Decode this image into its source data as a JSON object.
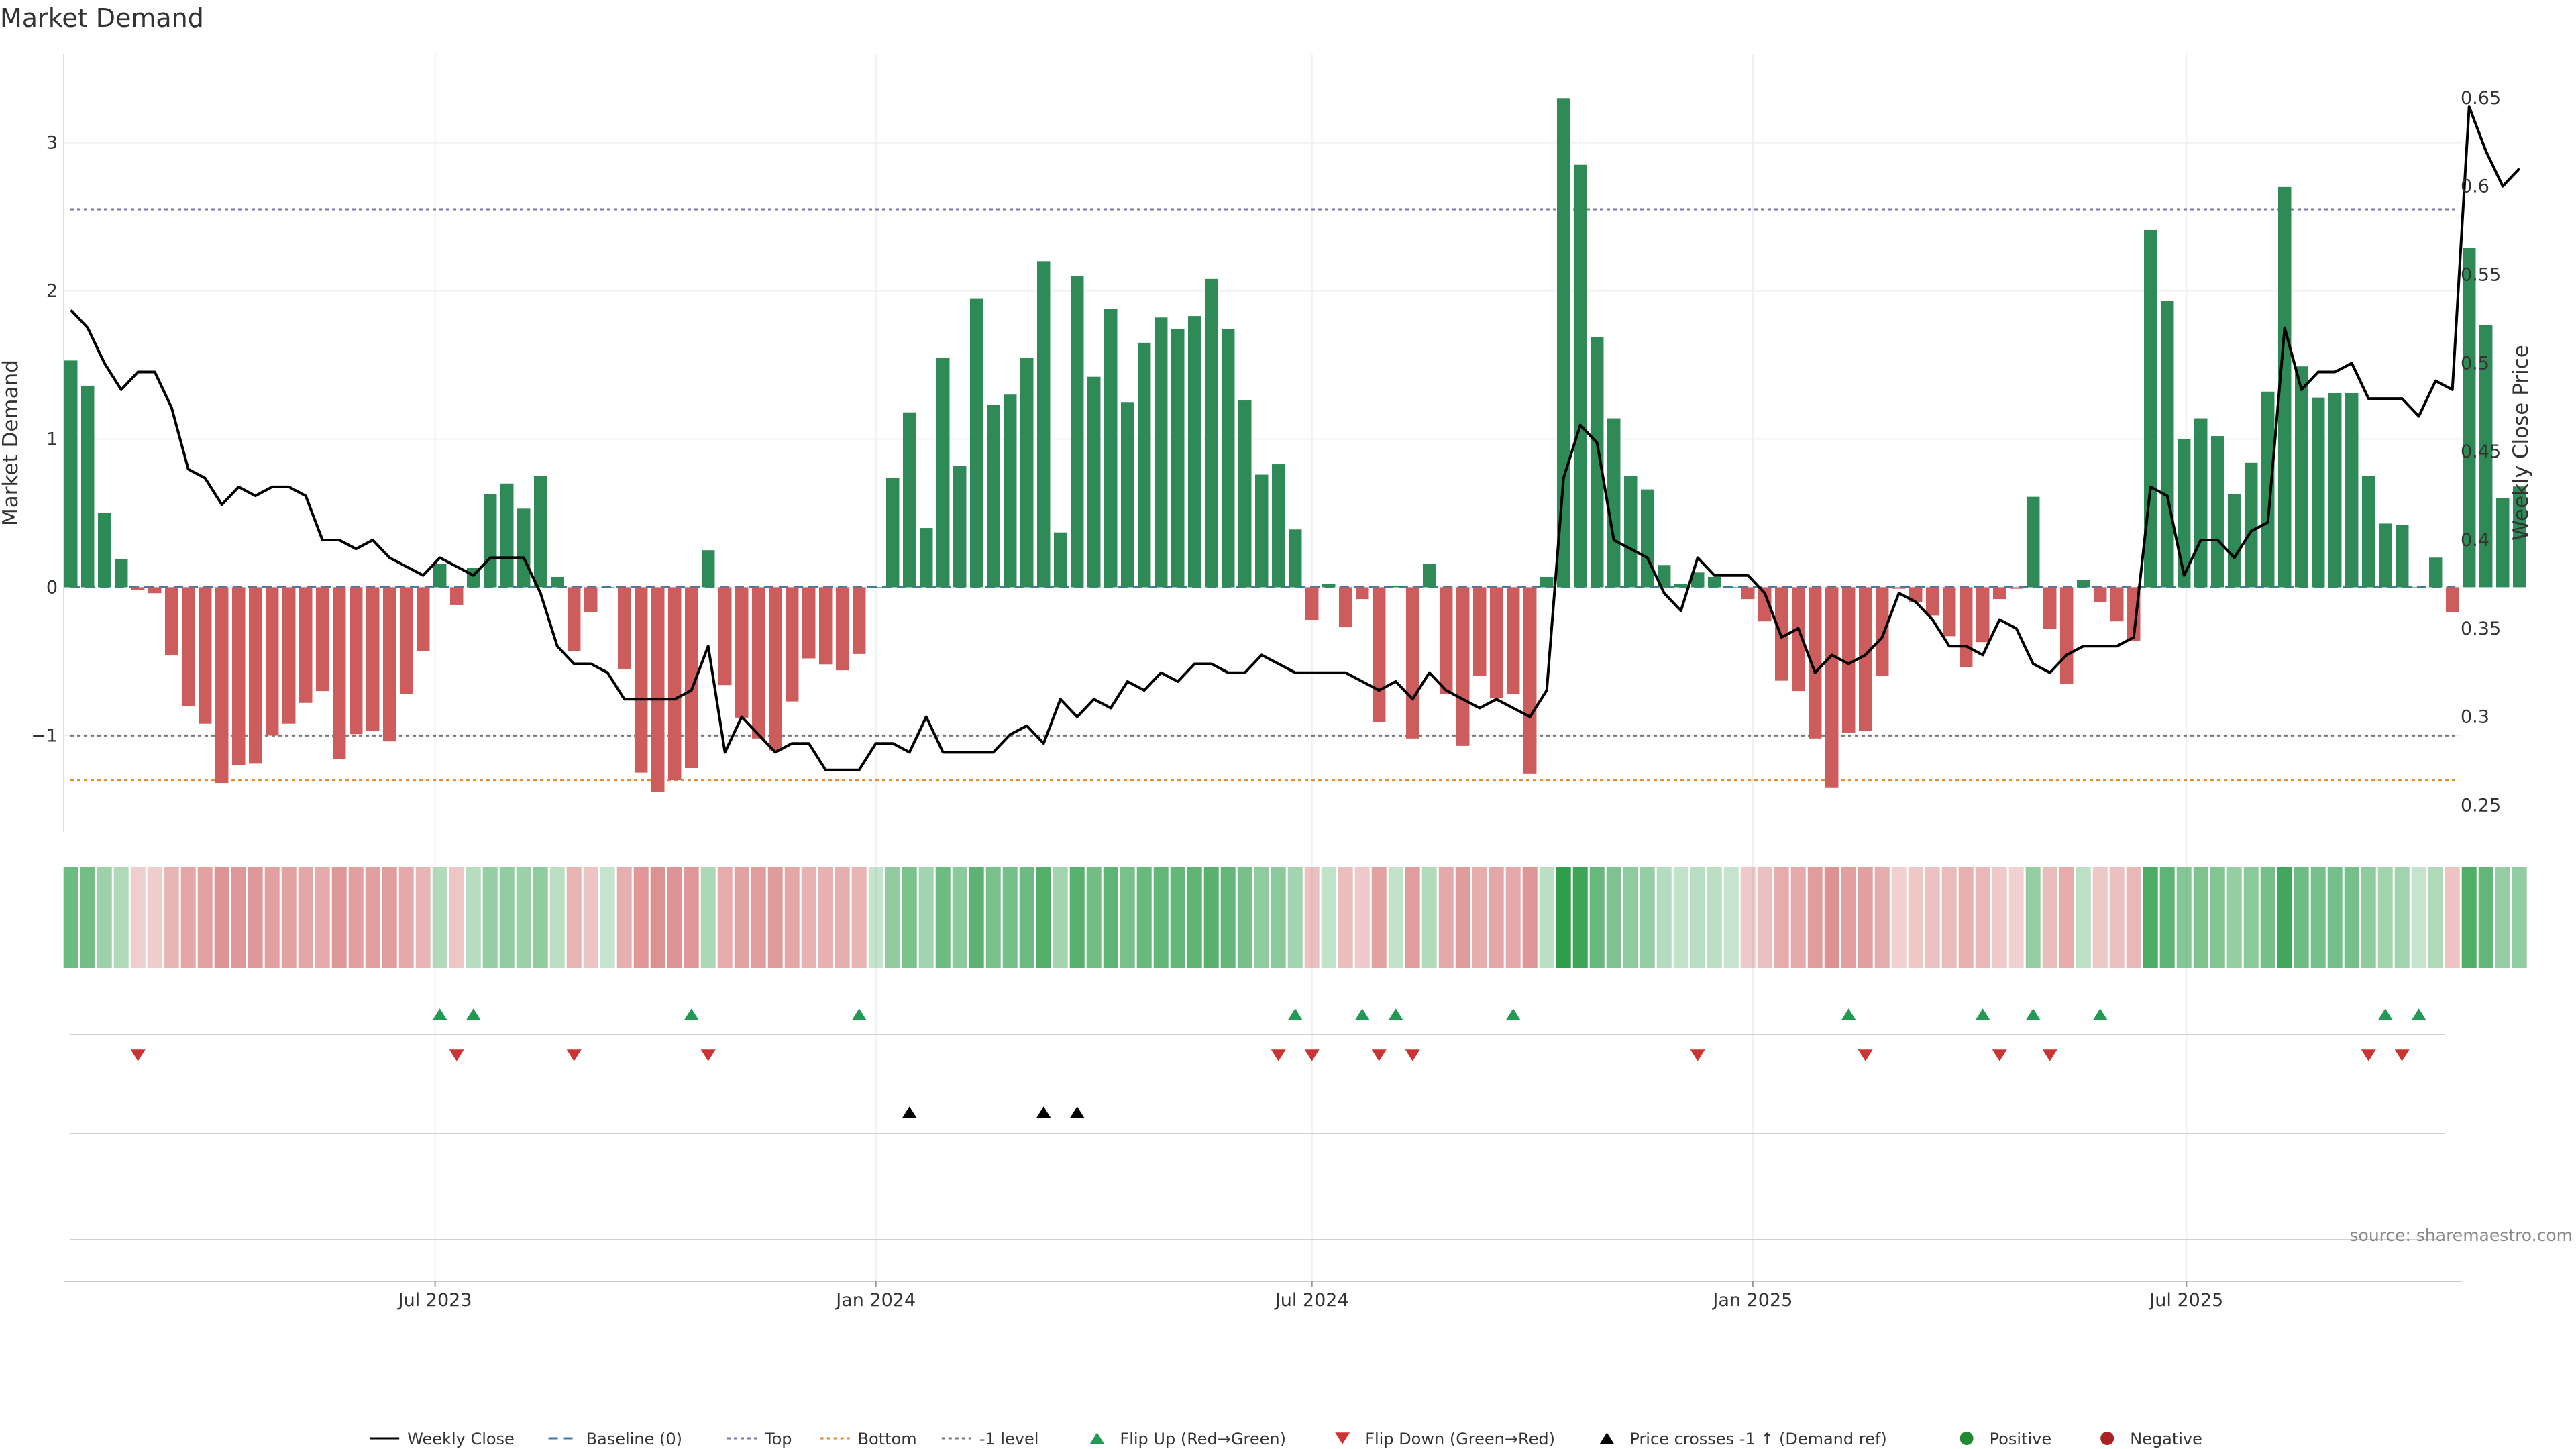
{
  "chart_data": {
    "type": "bar",
    "title": "Market Demand",
    "ylabel": "Market Demand",
    "y2label": "Weekly Close Price",
    "ylim": [
      -1.65,
      3.6
    ],
    "y2lim": [
      0.235,
      0.675
    ],
    "yticks": [
      3,
      2,
      1,
      0,
      -1
    ],
    "ytick_labels": [
      "3",
      "2",
      "1",
      "0",
      "−1"
    ],
    "y2ticks": [
      0.65,
      0.6,
      0.55,
      0.5,
      0.45,
      0.4,
      0.35,
      0.3,
      0.25
    ],
    "y2tick_labels": [
      "0.65",
      "0.6",
      "0.55",
      "0.5",
      "0.45",
      "0.4",
      "0.35",
      "0.3",
      "0.25"
    ],
    "x_start": "2023-01-30",
    "x_step_days": 7,
    "xlim_dates": [
      "2023-01-27",
      "2025-10-24"
    ],
    "x_ticks": [
      {
        "label": "Jul 2023",
        "date": "2023-07-01"
      },
      {
        "label": "Jan 2024",
        "date": "2024-01-01"
      },
      {
        "label": "Jul 2024",
        "date": "2024-07-01"
      },
      {
        "label": "Jan 2025",
        "date": "2025-01-01"
      },
      {
        "label": "Jul 2025",
        "date": "2025-07-01"
      }
    ],
    "reference_lines": [
      {
        "name": "Baseline (0)",
        "value": 0,
        "color": "#4477aa",
        "style": "dashed"
      },
      {
        "name": "Top",
        "value": 2.55,
        "color": "#7777aa",
        "style": "dotted"
      },
      {
        "name": "Bottom",
        "value": -1.3,
        "color": "#e08a2c",
        "style": "dotted"
      },
      {
        "name": "-1 level",
        "value": -1,
        "color": "#777777",
        "style": "dotted"
      }
    ],
    "series": [
      {
        "name": "Market Demand",
        "kind": "bar",
        "values": [
          1.53,
          1.36,
          0.5,
          0.19,
          -0.02,
          -0.04,
          -0.46,
          -0.8,
          -0.92,
          -1.32,
          -1.2,
          -1.19,
          -1.0,
          -0.92,
          -0.78,
          -0.7,
          -1.16,
          -0.99,
          -0.97,
          -1.04,
          -0.72,
          -0.43,
          0.16,
          -0.12,
          0.13,
          0.63,
          0.7,
          0.53,
          0.75,
          0.07,
          -0.43,
          -0.17,
          0.0,
          -0.55,
          -1.25,
          -1.38,
          -1.3,
          -1.22,
          0.25,
          -0.66,
          -0.88,
          -1.02,
          -1.1,
          -0.77,
          -0.48,
          -0.52,
          -0.56,
          -0.45,
          0.0,
          0.74,
          1.18,
          0.4,
          1.55,
          0.82,
          1.95,
          1.23,
          1.3,
          1.55,
          2.2,
          0.37,
          2.1,
          1.42,
          1.88,
          1.25,
          1.65,
          1.82,
          1.74,
          1.83,
          2.08,
          1.74,
          1.26,
          0.76,
          0.83,
          0.39,
          -0.22,
          0.02,
          -0.27,
          -0.08,
          -0.91,
          0.01,
          -1.02,
          0.16,
          -0.72,
          -1.07,
          -0.6,
          -0.75,
          -0.72,
          -1.26,
          0.07,
          3.3,
          2.85,
          1.69,
          1.14,
          0.75,
          0.66,
          0.15,
          0.02,
          0.1,
          0.07,
          0.0,
          -0.08,
          -0.23,
          -0.63,
          -0.7,
          -1.02,
          -1.35,
          -0.98,
          -0.97,
          -0.6,
          -0.01,
          -0.1,
          -0.19,
          -0.33,
          -0.54,
          -0.37,
          -0.08,
          -0.01,
          0.61,
          -0.28,
          -0.65,
          0.05,
          -0.1,
          -0.23,
          -0.36,
          2.41,
          1.93,
          1.0,
          1.14,
          1.02,
          0.63,
          0.84,
          1.32,
          2.7,
          1.49,
          1.28,
          1.31,
          1.31,
          0.75,
          0.43,
          0.42,
          0.0,
          0.2,
          -0.17,
          2.29,
          1.77,
          0.6,
          0.68
        ]
      },
      {
        "name": "Weekly Close",
        "kind": "line",
        "axis": "right",
        "values": [
          0.53,
          0.52,
          0.5,
          0.485,
          0.495,
          0.495,
          0.475,
          0.44,
          0.435,
          0.42,
          0.43,
          0.425,
          0.43,
          0.43,
          0.425,
          0.4,
          0.4,
          0.395,
          0.4,
          0.39,
          0.385,
          0.38,
          0.39,
          0.385,
          0.38,
          0.39,
          0.39,
          0.39,
          0.37,
          0.34,
          0.33,
          0.33,
          0.325,
          0.31,
          0.31,
          0.31,
          0.31,
          0.315,
          0.34,
          0.28,
          0.3,
          0.29,
          0.28,
          0.285,
          0.285,
          0.27,
          0.27,
          0.27,
          0.285,
          0.285,
          0.28,
          0.3,
          0.28,
          0.28,
          0.28,
          0.28,
          0.29,
          0.295,
          0.285,
          0.31,
          0.3,
          0.31,
          0.305,
          0.32,
          0.315,
          0.325,
          0.32,
          0.33,
          0.33,
          0.325,
          0.325,
          0.335,
          0.33,
          0.325,
          0.325,
          0.325,
          0.325,
          0.32,
          0.315,
          0.32,
          0.31,
          0.325,
          0.315,
          0.31,
          0.305,
          0.31,
          0.305,
          0.3,
          0.315,
          0.435,
          0.465,
          0.455,
          0.4,
          0.395,
          0.39,
          0.37,
          0.36,
          0.39,
          0.38,
          0.38,
          0.38,
          0.37,
          0.345,
          0.35,
          0.325,
          0.335,
          0.33,
          0.335,
          0.345,
          0.37,
          0.365,
          0.355,
          0.34,
          0.34,
          0.335,
          0.355,
          0.35,
          0.33,
          0.325,
          0.335,
          0.34,
          0.34,
          0.34,
          0.345,
          0.43,
          0.425,
          0.38,
          0.4,
          0.4,
          0.39,
          0.405,
          0.41,
          0.52,
          0.485,
          0.495,
          0.495,
          0.5,
          0.48,
          0.48,
          0.48,
          0.47,
          0.49,
          0.485,
          0.645,
          0.62,
          0.6,
          0.61
        ]
      },
      {
        "name": "Flip Up (Red→Green)",
        "kind": "marker",
        "color": "#229955",
        "indices": [
          22,
          24,
          37,
          47,
          73,
          77,
          79,
          86,
          106,
          114,
          117,
          121,
          138,
          140
        ]
      },
      {
        "name": "Flip Down (Green→Red)",
        "kind": "marker",
        "color": "#cc3333",
        "indices": [
          4,
          23,
          30,
          38,
          72,
          74,
          78,
          80,
          97,
          107,
          115,
          118,
          137,
          139
        ]
      },
      {
        "name": "Price crosses -1 ↑ (Demand ref)",
        "kind": "marker",
        "color": "#000000",
        "indices": [
          50,
          58,
          60
        ]
      }
    ],
    "legend": [
      {
        "name": "Weekly Close",
        "kind": "line",
        "color": "#000000",
        "dash": ""
      },
      {
        "name": "Baseline (0)",
        "kind": "line",
        "color": "#4477aa",
        "dash": "14,8"
      },
      {
        "name": "Top",
        "kind": "line",
        "color": "#7777aa",
        "dash": "5,5"
      },
      {
        "name": "Bottom",
        "kind": "line",
        "color": "#e08a2c",
        "dash": "5,5"
      },
      {
        "name": "-1 level",
        "kind": "line",
        "color": "#777777",
        "dash": "5,5"
      },
      {
        "name": "Flip Up (Red→Green)",
        "kind": "tri-up",
        "color": "#229955"
      },
      {
        "name": "Flip Down (Green→Red)",
        "kind": "tri-down",
        "color": "#cc3333"
      },
      {
        "name": "Price crosses -1 ↑ (Demand ref)",
        "kind": "tri-up",
        "color": "#000000"
      },
      {
        "name": "Positive",
        "kind": "dot",
        "color": "#228833"
      },
      {
        "name": "Negative",
        "kind": "dot",
        "color": "#aa2222"
      }
    ],
    "colors": {
      "positive_bar": "#2e8b57",
      "negative_bar": "#cd5c5c",
      "heat_positive": "#2e9e4a",
      "heat_negative": "#cd5c5c"
    },
    "grid": true,
    "legend_position": "bottom-center"
  },
  "source": "source: sharemaestro.com"
}
